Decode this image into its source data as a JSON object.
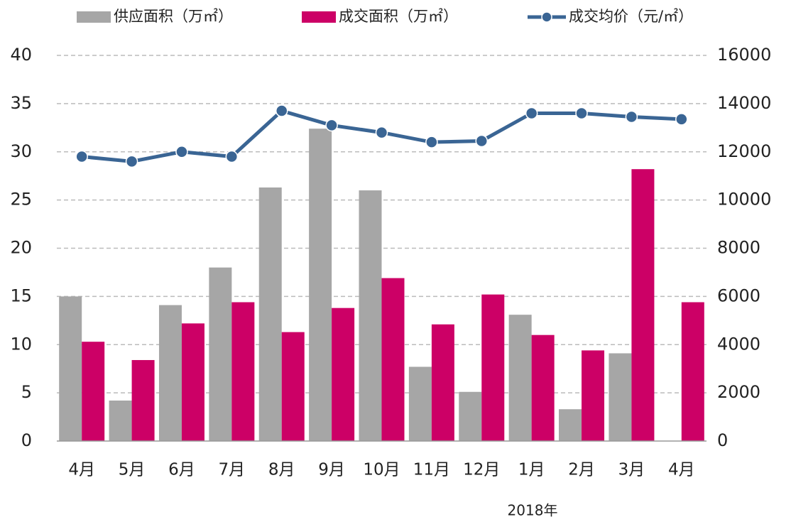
{
  "chart_data": {
    "type": "bar",
    "categories": [
      "4月",
      "5月",
      "6月",
      "7月",
      "8月",
      "9月",
      "10月",
      "11月",
      "12月",
      "1月",
      "2月",
      "3月",
      "4月"
    ],
    "series": [
      {
        "name": "供应面积（万㎡）",
        "type": "bar",
        "color": "#a6a6a6",
        "values": [
          15,
          4.2,
          14.1,
          18,
          26.3,
          32.4,
          26,
          7.7,
          5.1,
          13.1,
          3.3,
          9.1,
          0
        ]
      },
      {
        "name": "成交面积（万㎡）",
        "type": "bar",
        "color": "#cc0066",
        "values": [
          10.3,
          8.4,
          12.2,
          14.4,
          11.3,
          13.8,
          16.9,
          12.1,
          15.2,
          11,
          9.4,
          28.2,
          14.4
        ]
      },
      {
        "name": "成交均价（元/㎡）",
        "type": "line",
        "axis": "y2",
        "color": "#3a6594",
        "values": [
          11800,
          11600,
          12000,
          11800,
          13700,
          13100,
          12800,
          12400,
          12450,
          13600,
          13600,
          13450,
          13350
        ]
      }
    ],
    "annotation": "2018年",
    "ylim": [
      0,
      40
    ],
    "yticks": [
      0,
      5,
      10,
      15,
      20,
      25,
      30,
      35,
      40
    ],
    "y2lim": [
      0,
      16000
    ],
    "y2ticks": [
      0,
      2000,
      4000,
      6000,
      8000,
      10000,
      12000,
      14000,
      16000
    ],
    "grid": true,
    "legend": "top"
  }
}
